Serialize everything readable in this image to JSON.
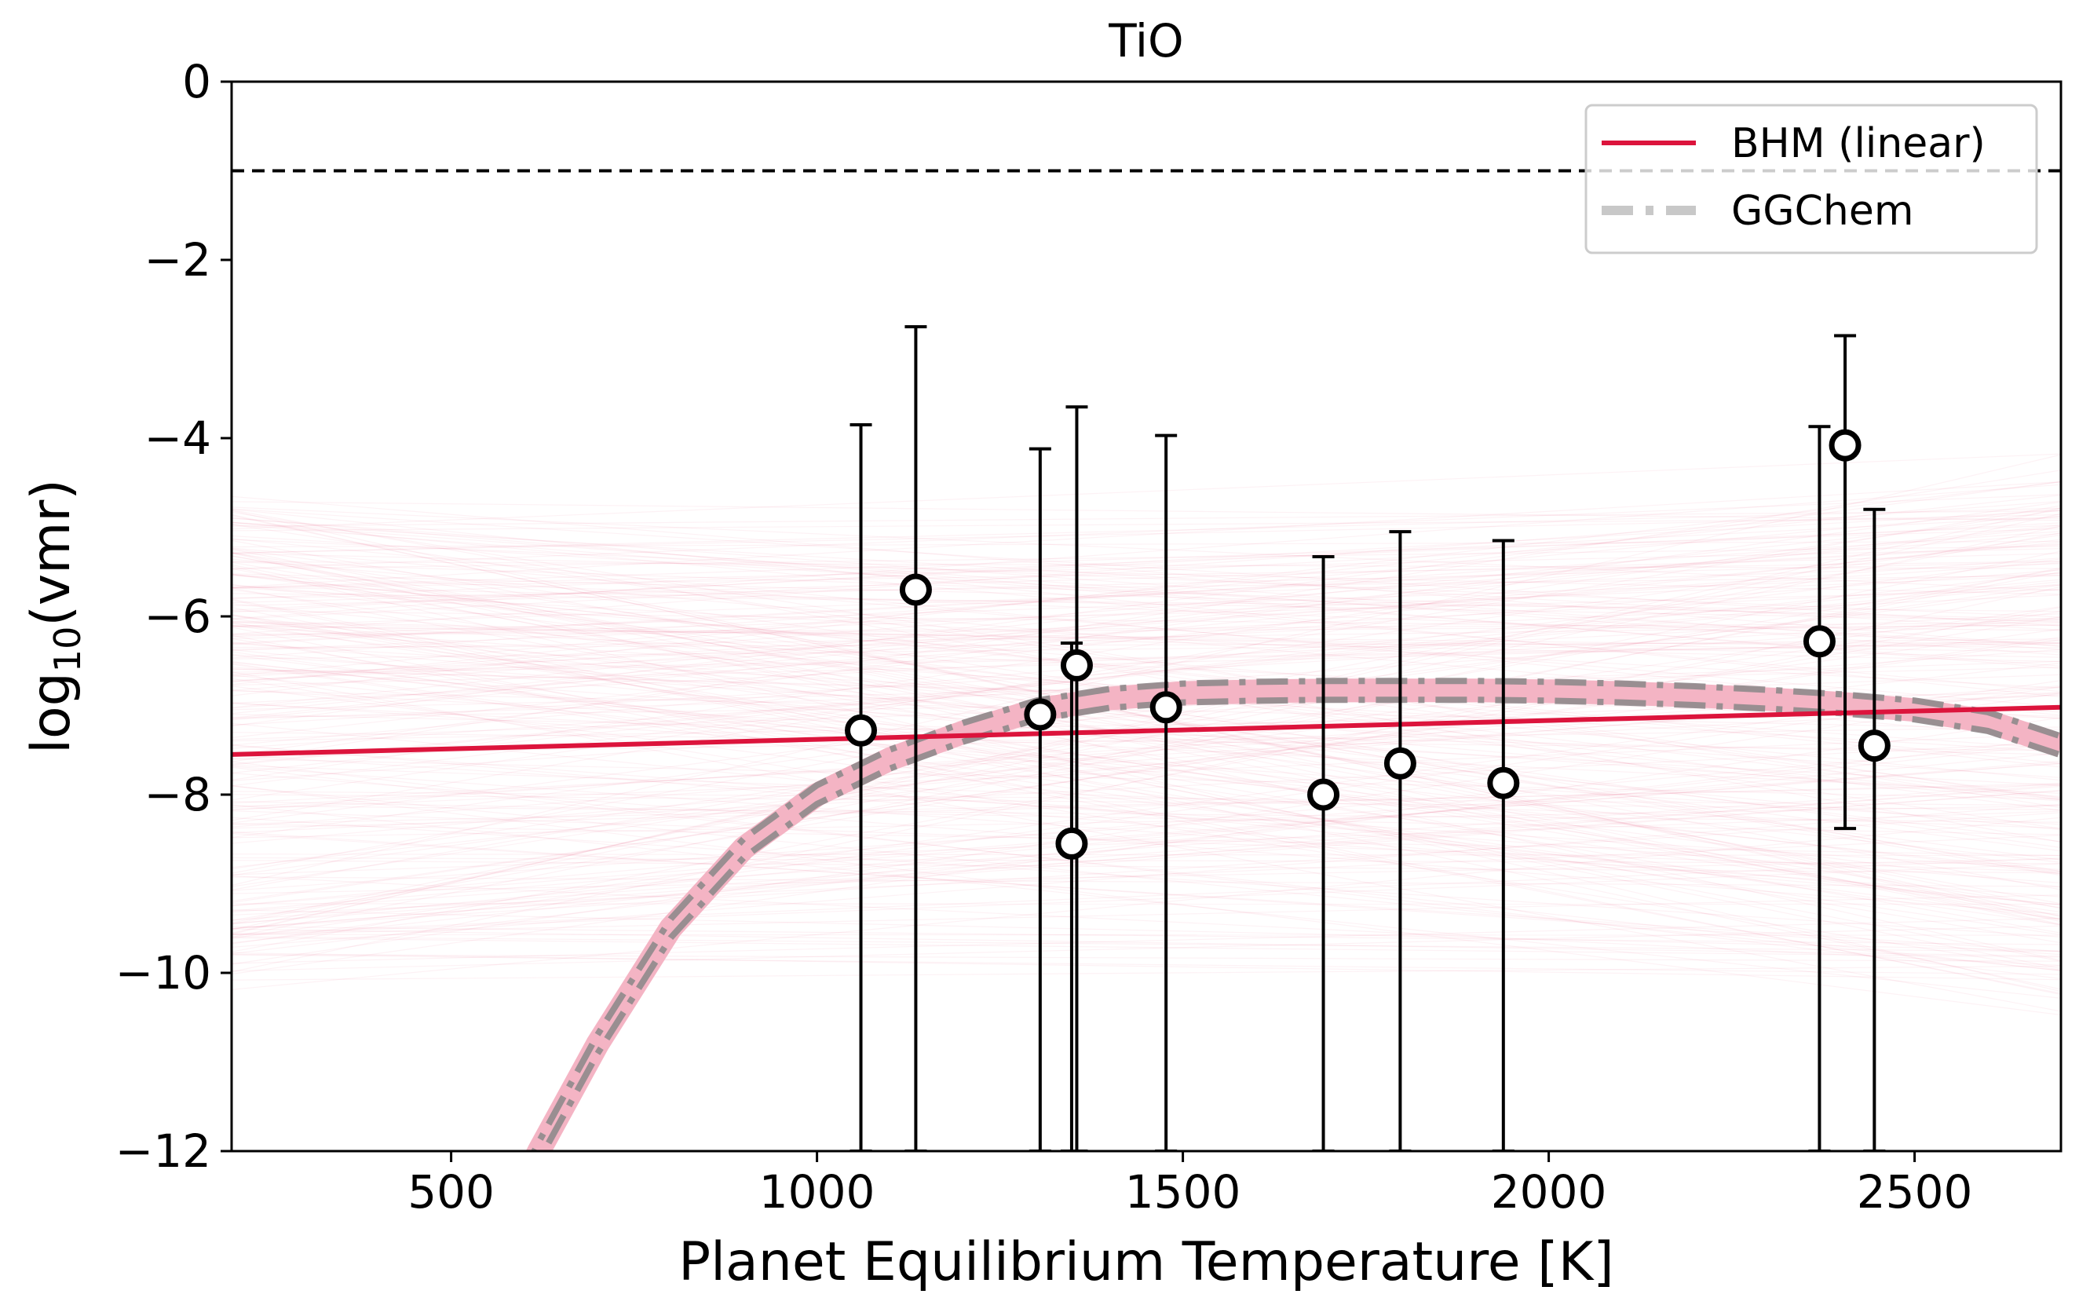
{
  "chart_data": {
    "type": "scatter",
    "title": "TiO",
    "xlabel": "Planet Equilibrium Temperature [K]",
    "ylabel_main": "log",
    "ylabel_sub": "10",
    "ylabel_tail": "(vmr)",
    "xlim": [
      200,
      2700
    ],
    "ylim": [
      -12,
      0
    ],
    "xticks": [
      500,
      1000,
      1500,
      2000,
      2500
    ],
    "yticks": [
      0,
      -2,
      -4,
      -6,
      -8,
      -10,
      -12
    ],
    "xtick_labels": [
      "500",
      "1000",
      "1500",
      "2000",
      "2500"
    ],
    "ytick_labels": [
      "0",
      "−2",
      "−4",
      "−6",
      "−8",
      "−10",
      "−12"
    ],
    "reference_line_y": -1,
    "legend": {
      "placement": "top-right",
      "entries": [
        {
          "label": "BHM (linear)",
          "style": "solid",
          "color": "#dc143c"
        },
        {
          "label": "GGChem",
          "style": "dashdot",
          "color": "#c8c8c8"
        }
      ]
    },
    "bhm_line": {
      "x": [
        200,
        2700
      ],
      "y": [
        -7.55,
        -7.02
      ]
    },
    "posterior_spread": {
      "center": -7.3,
      "spread_left": 2.6,
      "spread_right": 2.8
    },
    "ggchem": {
      "x": [
        560,
        620,
        700,
        800,
        900,
        1000,
        1100,
        1200,
        1300,
        1400,
        1500,
        1600,
        1700,
        1800,
        1900,
        2000,
        2100,
        2200,
        2300,
        2400,
        2500,
        2600,
        2700
      ],
      "y": [
        -13.0,
        -12.0,
        -10.8,
        -9.5,
        -8.6,
        -8.0,
        -7.6,
        -7.3,
        -7.05,
        -6.92,
        -6.86,
        -6.84,
        -6.83,
        -6.83,
        -6.83,
        -6.84,
        -6.86,
        -6.89,
        -6.93,
        -6.98,
        -7.05,
        -7.18,
        -7.45
      ]
    },
    "points": [
      {
        "x": 1060,
        "y": -7.28,
        "lo": -12.0,
        "hi": -3.85
      },
      {
        "x": 1135,
        "y": -5.7,
        "lo": -12.0,
        "hi": -2.75
      },
      {
        "x": 1305,
        "y": -7.1,
        "lo": -12.0,
        "hi": -4.12
      },
      {
        "x": 1348,
        "y": -8.55,
        "lo": -12.0,
        "hi": -6.3
      },
      {
        "x": 1355,
        "y": -6.55,
        "lo": -12.0,
        "hi": -3.65
      },
      {
        "x": 1477,
        "y": -7.02,
        "lo": -12.0,
        "hi": -3.97
      },
      {
        "x": 1692,
        "y": -8.0,
        "lo": -12.0,
        "hi": -5.33
      },
      {
        "x": 1797,
        "y": -7.65,
        "lo": -12.0,
        "hi": -5.05
      },
      {
        "x": 1938,
        "y": -7.87,
        "lo": -12.0,
        "hi": -5.15
      },
      {
        "x": 2370,
        "y": -6.28,
        "lo": -12.0,
        "hi": -3.87
      },
      {
        "x": 2405,
        "y": -4.08,
        "lo": -8.38,
        "hi": -2.85
      },
      {
        "x": 2445,
        "y": -7.45,
        "lo": -12.0,
        "hi": -4.8
      }
    ]
  }
}
